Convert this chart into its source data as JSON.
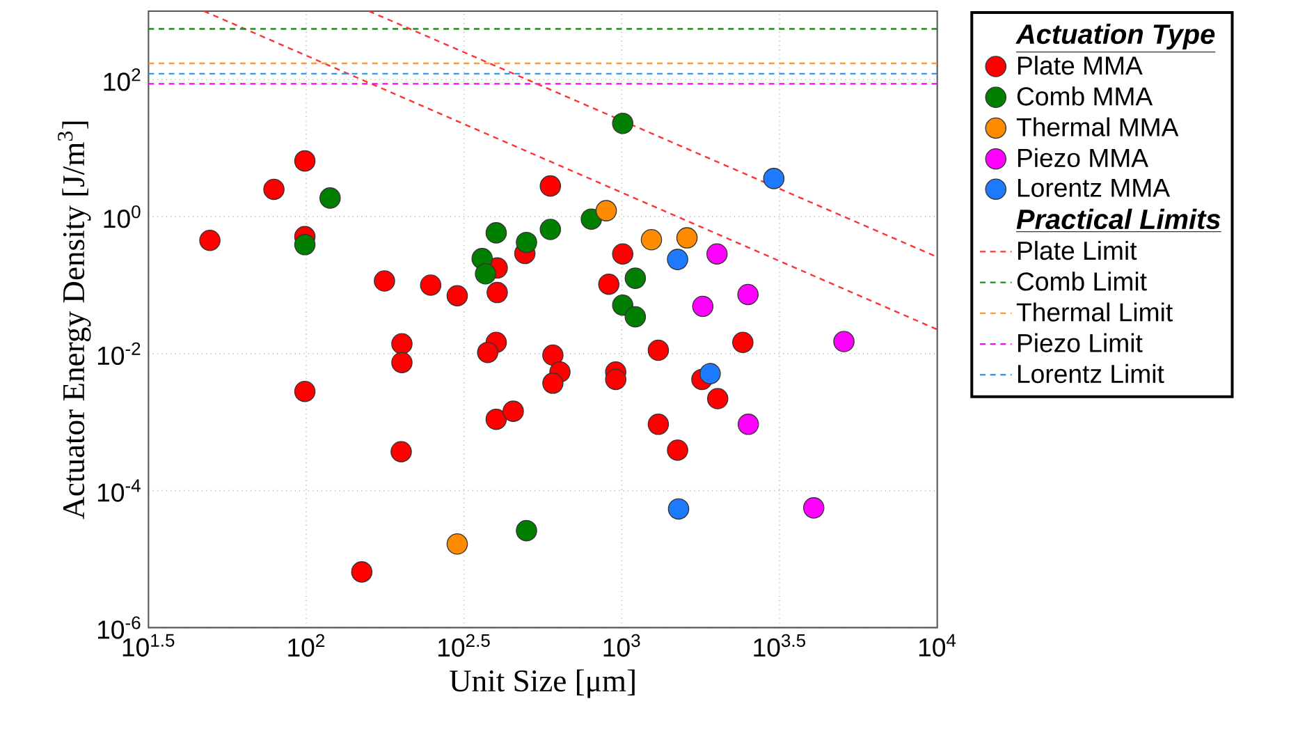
{
  "chart_data": {
    "type": "scatter",
    "xlabel": "Unit Size [μm]",
    "ylabel": "Actuator Energy Density [J/m$^{3}$]",
    "legend_title": "Actuation Type",
    "annotations": [
      "Practical Limits"
    ],
    "log": "xy",
    "grid": true,
    "legend": "right",
    "xlim": [
      31.6227766,
      10000
    ],
    "ylim": [
      1e-06,
      1000
    ],
    "xticks": [
      {
        "value": 31.6227766,
        "label": "10$^{1.5}$"
      },
      {
        "value": 100,
        "label": "10$^{2}$"
      },
      {
        "value": 316.227766,
        "label": "10$^{2.5}$"
      },
      {
        "value": 1000,
        "label": "10$^{3}$"
      },
      {
        "value": 3162.27766,
        "label": "10$^{3.5}$"
      },
      {
        "value": 10000,
        "label": "10$^{4}$"
      }
    ],
    "yticks": [
      {
        "value": 1e-06,
        "label": "10$^{-6}$"
      },
      {
        "value": 0.0001,
        "label": "10$^{-4}$"
      },
      {
        "value": 0.01,
        "label": "10$^{-2}$"
      },
      {
        "value": 1,
        "label": "10$^{0}$"
      },
      {
        "value": 100,
        "label": "10$^{2}$"
      }
    ],
    "series": [
      {
        "name": "Plate MMA",
        "marker": "circle",
        "color": "#ff0000",
        "x": [
          49.5,
          79,
          99,
          99,
          177,
          248,
          301,
          403,
          403,
          201,
          201,
          400,
          376,
          594,
          493,
          1007,
          910,
          1306,
          2420,
          605,
          637,
          605,
          957,
          957,
          1795,
          2014,
          1306,
          1503,
          99,
          400,
          453,
          200,
          150
        ],
        "values": [
          0.45,
          2.5,
          6.5,
          0.51,
          0.115,
          0.1,
          0.07,
          0.178,
          0.078,
          0.0139,
          0.0074,
          0.0146,
          0.0104,
          2.8,
          0.29,
          0.285,
          0.103,
          0.0112,
          0.0146,
          0.0095,
          0.0054,
          0.0037,
          0.0054,
          0.0042,
          0.0042,
          0.0022,
          0.00093,
          0.00039,
          0.0028,
          0.0011,
          0.00144,
          0.00037,
          6.5e-06
        ]
      },
      {
        "name": "Comb MMA",
        "marker": "circle",
        "color": "#007f00",
        "x": [
          119,
          99,
          361,
          370,
          400,
          499,
          594,
          1007,
          801,
          1104,
          1007,
          1104,
          499
        ],
        "values": [
          1.87,
          0.39,
          0.244,
          0.146,
          0.58,
          0.42,
          0.65,
          23,
          0.92,
          0.126,
          0.051,
          0.0345,
          2.6e-05
        ]
      },
      {
        "name": "Thermal MMA",
        "marker": "circle",
        "color": "#ff8c00",
        "x": [
          893,
          1242,
          1610,
          301
        ],
        "values": [
          1.22,
          0.46,
          0.49,
          1.66e-05
        ]
      },
      {
        "name": "Piezo MMA",
        "marker": "circle",
        "color": "#ff00ff",
        "x": [
          2004,
          1807,
          2512,
          5060,
          2518,
          4060
        ],
        "values": [
          0.285,
          0.049,
          0.073,
          0.015,
          0.00093,
          5.6e-05
        ]
      },
      {
        "name": "Lorentz MMA",
        "marker": "circle",
        "color": "#1e7bff",
        "x": [
          3034,
          1503,
          1906,
          1514
        ],
        "values": [
          3.6,
          0.237,
          0.0051,
          5.4e-05
        ]
      },
      {
        "name": "Plate Limit",
        "type": "line",
        "marker": "none",
        "line_style": "dashed",
        "color": "#ff3333",
        "x": [
          47.4,
          10000
        ],
        "values": [
          1000,
          0.0225
        ]
      },
      {
        "name": "Comb Limit",
        "type": "line",
        "marker": "none",
        "line_style": "dashed",
        "color": "#228b22",
        "x": [
          31.6227766,
          10000
        ],
        "values": [
          550,
          550
        ]
      },
      {
        "name": "Thermal Limit",
        "type": "line",
        "marker": "none",
        "line_style": "dashed",
        "color": "#ff9933",
        "x": [
          31.6227766,
          10000
        ],
        "values": [
          173,
          173
        ]
      },
      {
        "name": "Piezo Limit",
        "type": "line",
        "marker": "none",
        "line_style": "dashed",
        "color": "#ff00ff",
        "x": [
          31.6227766,
          10000
        ],
        "values": [
          87,
          87
        ]
      },
      {
        "name": "Lorentz Limit",
        "type": "line",
        "marker": "none",
        "line_style": "dashed",
        "color": "#3399ff",
        "x": [
          31.6227766,
          10000
        ],
        "values": [
          122,
          122
        ]
      },
      {
        "type": "line",
        "marker": "none",
        "line_style": "dashed",
        "color": "#ff3333",
        "x": [
          158,
          10000
        ],
        "values": [
          1000,
          0.257
        ]
      }
    ]
  }
}
